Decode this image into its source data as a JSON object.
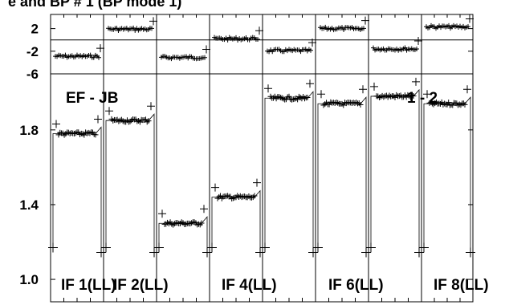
{
  "chart_data": [
    {
      "type": "scatter",
      "panel": "top",
      "title": "e and BP # 1 (BP mode 1)",
      "ylim": [
        -6,
        4.5
      ],
      "y_ticks": [
        2,
        -2,
        -6
      ],
      "y_tick_labels": [
        "2",
        "-2",
        "-6"
      ],
      "reference_line": 0,
      "series": [
        {
          "level": -2.9
        },
        {
          "level": 1.9
        },
        {
          "level": -3.1
        },
        {
          "level": 0.2
        },
        {
          "level": -1.9
        },
        {
          "level": 2.0
        },
        {
          "level": -1.6
        },
        {
          "level": 2.3
        }
      ]
    },
    {
      "type": "scatter",
      "panel": "bottom",
      "ylim": [
        0.88,
        2.1
      ],
      "y_ticks": [
        1.8,
        1.4,
        1.0
      ],
      "y_tick_labels": [
        "1.8",
        "1.4",
        "1.0"
      ],
      "annotations": [
        "EF - JB",
        "1 - 2"
      ],
      "panel_labels": [
        "IF 1(LL)",
        "IF 2(LL)",
        "IF 4(LL)",
        "IF 6(LL)",
        "IF 8(LL)"
      ],
      "series": [
        {
          "level": 1.78
        },
        {
          "level": 1.85
        },
        {
          "level": 1.3
        },
        {
          "level": 1.44
        },
        {
          "level": 1.97
        },
        {
          "level": 1.94
        },
        {
          "level": 1.98
        },
        {
          "level": 1.94
        }
      ]
    }
  ]
}
